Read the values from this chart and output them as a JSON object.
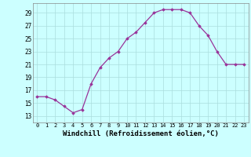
{
  "x": [
    0,
    1,
    2,
    3,
    4,
    5,
    6,
    7,
    8,
    9,
    10,
    11,
    12,
    13,
    14,
    15,
    16,
    17,
    18,
    19,
    20,
    21,
    22,
    23
  ],
  "y": [
    16,
    16,
    15.5,
    14.5,
    13.5,
    14,
    18,
    20.5,
    22,
    23,
    25,
    26,
    27.5,
    29,
    29.5,
    29.5,
    29.5,
    29,
    27,
    25.5,
    23,
    21,
    21,
    21
  ],
  "line_color": "#993399",
  "marker": "D",
  "marker_size": 1.8,
  "bg_color": "#ccffff",
  "grid_color": "#aadddd",
  "xlabel": "Windchill (Refroidissement éolien,°C)",
  "xlabel_fontsize": 6.5,
  "xlabel_fontweight": "bold",
  "yticks": [
    13,
    15,
    17,
    19,
    21,
    23,
    25,
    27,
    29
  ],
  "xtick_fontsize": 5.0,
  "ytick_fontsize": 5.5,
  "ylim": [
    12.0,
    30.5
  ],
  "xlim": [
    -0.5,
    23.5
  ],
  "linewidth": 0.9,
  "spine_color": "#888888"
}
